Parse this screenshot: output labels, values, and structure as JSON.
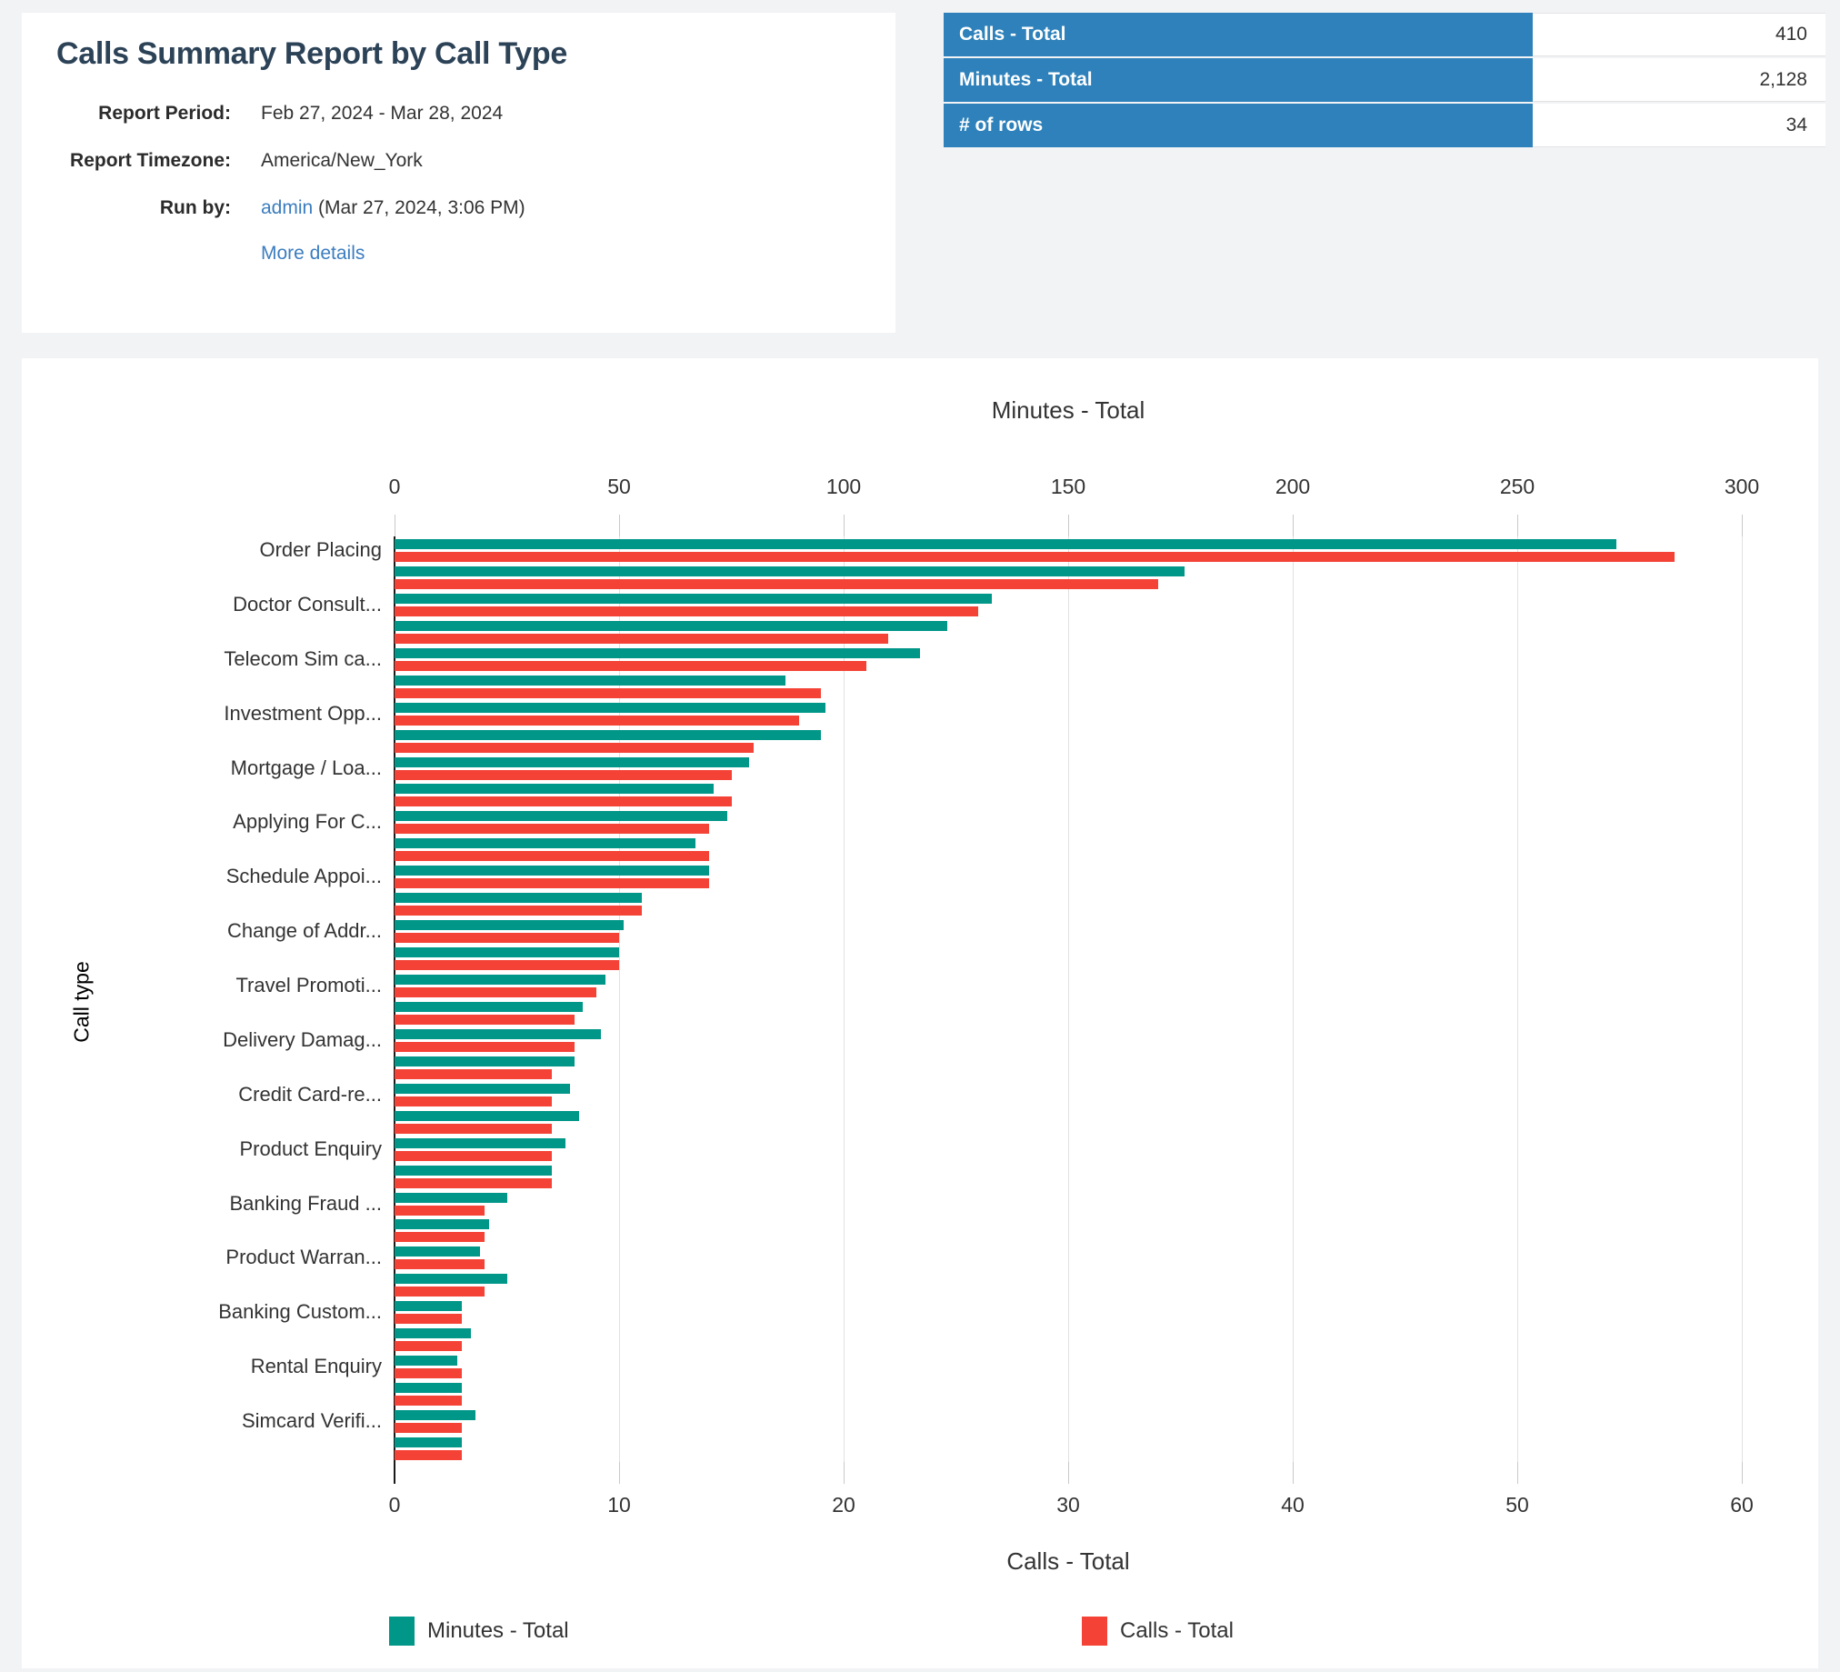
{
  "header": {
    "title": "Calls Summary Report by Call Type",
    "fields": [
      {
        "label": "Report Period:",
        "value": "Feb 27, 2024 - Mar 28, 2024"
      },
      {
        "label": "Report Timezone:",
        "value": "America/New_York"
      },
      {
        "label": "Run by:",
        "link": "admin",
        "value_suffix": "(Mar 27, 2024, 3:06 PM)"
      }
    ],
    "more_details_link": "More details"
  },
  "summary_table": {
    "header_bg": "#2e81ba",
    "rows": [
      {
        "label": "Calls - Total",
        "value": "410"
      },
      {
        "label": "Minutes - Total",
        "value": "2,128"
      },
      {
        "label": "# of rows",
        "value": "34"
      }
    ]
  },
  "chart_data": {
    "type": "bar",
    "orientation": "horizontal",
    "top_axis": {
      "title": "Minutes - Total",
      "min": 0,
      "max": 300,
      "ticks": [
        0,
        50,
        100,
        150,
        200,
        250,
        300
      ]
    },
    "bottom_axis": {
      "title": "Calls - Total",
      "min": 0,
      "max": 60,
      "ticks": [
        0,
        10,
        20,
        30,
        40,
        50,
        60
      ]
    },
    "ylabel": "Call type",
    "grid": true,
    "legend_position": "bottom",
    "legend": [
      {
        "label": "Minutes - Total",
        "color": "#009688"
      },
      {
        "label": "Calls - Total",
        "color": "#f44336"
      }
    ],
    "series_colors": {
      "minutes": "#009688",
      "calls": "#f44336"
    },
    "rows": [
      {
        "label": "Order Placing",
        "minutes": 272,
        "calls": 57
      },
      {
        "label": "",
        "minutes": 176,
        "calls": 34
      },
      {
        "label": "Doctor Consult...",
        "minutes": 133,
        "calls": 26
      },
      {
        "label": "",
        "minutes": 123,
        "calls": 22
      },
      {
        "label": "Telecom Sim ca...",
        "minutes": 117,
        "calls": 21
      },
      {
        "label": "",
        "minutes": 87,
        "calls": 19
      },
      {
        "label": "Investment Opp...",
        "minutes": 96,
        "calls": 18
      },
      {
        "label": "",
        "minutes": 95,
        "calls": 16
      },
      {
        "label": "Mortgage / Loa...",
        "minutes": 79,
        "calls": 15
      },
      {
        "label": "",
        "minutes": 71,
        "calls": 15
      },
      {
        "label": "Applying For C...",
        "minutes": 74,
        "calls": 14
      },
      {
        "label": "",
        "minutes": 67,
        "calls": 14
      },
      {
        "label": "Schedule Appoi...",
        "minutes": 70,
        "calls": 14
      },
      {
        "label": "",
        "minutes": 55,
        "calls": 11
      },
      {
        "label": "Change of Addr...",
        "minutes": 51,
        "calls": 10
      },
      {
        "label": "",
        "minutes": 50,
        "calls": 10
      },
      {
        "label": "Travel Promoti...",
        "minutes": 47,
        "calls": 9
      },
      {
        "label": "",
        "minutes": 42,
        "calls": 8
      },
      {
        "label": "Delivery Damag...",
        "minutes": 46,
        "calls": 8
      },
      {
        "label": "",
        "minutes": 40,
        "calls": 7
      },
      {
        "label": "Credit Card-re...",
        "minutes": 39,
        "calls": 7
      },
      {
        "label": "",
        "minutes": 41,
        "calls": 7
      },
      {
        "label": "Product Enquiry",
        "minutes": 38,
        "calls": 7
      },
      {
        "label": "",
        "minutes": 35,
        "calls": 7
      },
      {
        "label": "Banking Fraud ...",
        "minutes": 25,
        "calls": 4
      },
      {
        "label": "",
        "minutes": 21,
        "calls": 4
      },
      {
        "label": "Product Warran...",
        "minutes": 19,
        "calls": 4
      },
      {
        "label": "",
        "minutes": 25,
        "calls": 4
      },
      {
        "label": "Banking Custom...",
        "minutes": 15,
        "calls": 3
      },
      {
        "label": "",
        "minutes": 17,
        "calls": 3
      },
      {
        "label": "Rental Enquiry",
        "minutes": 14,
        "calls": 3
      },
      {
        "label": "",
        "minutes": 15,
        "calls": 3
      },
      {
        "label": "Simcard Verifi...",
        "minutes": 18,
        "calls": 3
      },
      {
        "label": "",
        "minutes": 15,
        "calls": 3
      }
    ]
  }
}
